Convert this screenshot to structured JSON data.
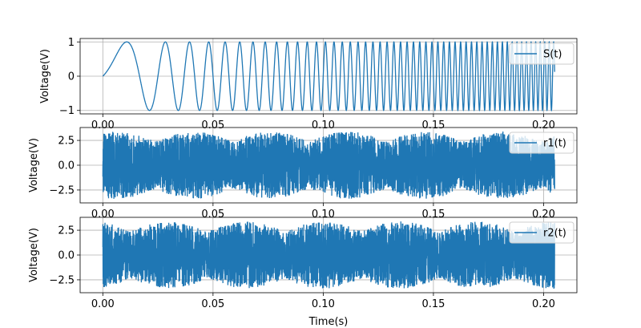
{
  "chart_data": [
    {
      "type": "line",
      "xlabel": "",
      "ylabel": "Voltage(V)",
      "xlim": [
        -0.0103,
        0.2151
      ],
      "ylim": [
        -1.1,
        1.1
      ],
      "xticks": [
        0.0,
        0.05,
        0.1,
        0.15,
        0.2
      ],
      "xtick_labels": [
        "0.00",
        "0.05",
        "0.10",
        "0.15",
        "0.20"
      ],
      "yticks": [
        -1,
        0,
        1
      ],
      "ytick_labels": [
        "−1",
        "0",
        "1"
      ],
      "grid": true,
      "legend": "top-right",
      "series": [
        {
          "name": "S(t)",
          "color": "#1f77b4",
          "kind": "chirp",
          "amplitude": 1.0,
          "f0": 10,
          "k": 2400,
          "x_start": 0.0,
          "x_end": 0.205
        }
      ]
    },
    {
      "type": "line",
      "xlabel": "",
      "ylabel": "Voltage(V)",
      "xlim": [
        -0.0103,
        0.2151
      ],
      "ylim": [
        -3.8,
        3.8
      ],
      "xticks": [
        0.0,
        0.05,
        0.1,
        0.15,
        0.2
      ],
      "xtick_labels": [
        "0.00",
        "0.05",
        "0.10",
        "0.15",
        "0.20"
      ],
      "yticks": [
        -2.5,
        0.0,
        2.5
      ],
      "ytick_labels": [
        "−2.5",
        "0.0",
        "2.5"
      ],
      "grid": true,
      "legend": "top-right",
      "series": [
        {
          "name": "r1(t)",
          "color": "#1f77b4",
          "kind": "noisy",
          "amplitude": 3.4,
          "x_start": 0.0,
          "x_end": 0.205
        }
      ]
    },
    {
      "type": "line",
      "xlabel": "Time(s)",
      "ylabel": "Voltage(V)",
      "xlim": [
        -0.0103,
        0.2151
      ],
      "ylim": [
        -3.8,
        3.8
      ],
      "xticks": [
        0.0,
        0.05,
        0.1,
        0.15,
        0.2
      ],
      "xtick_labels": [
        "0.00",
        "0.05",
        "0.10",
        "0.15",
        "0.20"
      ],
      "yticks": [
        -2.5,
        0.0,
        2.5
      ],
      "ytick_labels": [
        "−2.5",
        "0.0",
        "2.5"
      ],
      "grid": true,
      "legend": "top-right",
      "series": [
        {
          "name": "r2(t)",
          "color": "#1f77b4",
          "kind": "noisy",
          "amplitude": 3.4,
          "x_start": 0.0,
          "x_end": 0.205
        }
      ]
    }
  ]
}
